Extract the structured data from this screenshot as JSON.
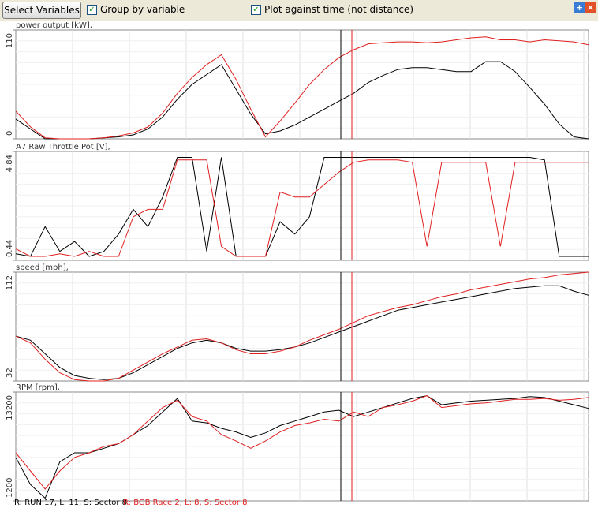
{
  "toolbar": {
    "button": "Select Variables",
    "checkbox_1": "Group by variable",
    "checkbox_2": "Plot against time (not distance)"
  },
  "footer": {
    "run_1": "R: RUN     17, L: 11, S: Sector 8",
    "run_2": "R: BGB Race 2, L: 8, S: Sector 8"
  },
  "chart_data": [
    {
      "type": "line",
      "title": "power output [kW],",
      "ylim": [
        0,
        110
      ],
      "yticks": [
        0,
        110
      ],
      "series": [
        {
          "color": "#000000",
          "values": [
            20,
            10,
            0,
            0,
            0,
            0,
            1,
            2,
            4,
            10,
            22,
            40,
            55,
            65,
            75,
            50,
            25,
            5,
            8,
            14,
            22,
            30,
            38,
            46,
            57,
            64,
            70,
            72,
            72,
            70,
            68,
            68,
            78,
            78,
            68,
            52,
            35,
            15,
            2,
            0
          ]
        },
        {
          "color": "#e02020",
          "values": [
            28,
            12,
            1,
            0,
            0,
            0,
            1,
            3,
            6,
            12,
            26,
            46,
            62,
            75,
            85,
            60,
            30,
            2,
            18,
            36,
            55,
            70,
            82,
            90,
            96,
            97,
            98,
            98,
            97,
            98,
            100,
            102,
            103,
            100,
            100,
            98,
            100,
            99,
            98,
            95
          ]
        }
      ]
    },
    {
      "type": "line",
      "title": "A7 Raw Throttle Pot [V],",
      "ylim": [
        0.44,
        4.84
      ],
      "yticks": [
        0.44,
        4.84
      ],
      "series": [
        {
          "color": "#000000",
          "values": [
            0.7,
            0.6,
            1.8,
            0.8,
            1.2,
            0.6,
            0.8,
            1.5,
            2.5,
            1.8,
            3.0,
            4.6,
            4.6,
            0.8,
            4.6,
            0.6,
            0.6,
            0.6,
            2.0,
            1.5,
            2.2,
            4.6,
            4.6,
            4.6,
            4.6,
            4.6,
            4.6,
            4.6,
            4.6,
            4.6,
            4.6,
            4.6,
            4.6,
            4.6,
            4.6,
            4.6,
            4.5,
            0.6,
            0.6,
            0.6
          ]
        },
        {
          "color": "#e02020",
          "values": [
            0.9,
            0.6,
            0.6,
            0.7,
            0.6,
            0.8,
            0.6,
            0.6,
            2.2,
            2.5,
            2.5,
            4.5,
            4.5,
            4.5,
            1.0,
            0.6,
            0.6,
            0.6,
            3.2,
            3.0,
            3.0,
            3.5,
            4.0,
            4.4,
            4.5,
            4.5,
            4.5,
            4.4,
            1.0,
            4.4,
            4.4,
            4.4,
            4.4,
            1.0,
            4.4,
            4.4,
            4.4,
            4.4,
            4.4,
            4.4
          ]
        }
      ]
    },
    {
      "type": "line",
      "title": "speed [mph],",
      "ylim": [
        32,
        112
      ],
      "yticks": [
        32,
        112
      ],
      "series": [
        {
          "color": "#000000",
          "values": [
            65,
            62,
            52,
            42,
            36,
            34,
            33,
            34,
            38,
            44,
            50,
            56,
            60,
            62,
            60,
            56,
            54,
            54,
            55,
            57,
            60,
            64,
            68,
            72,
            76,
            80,
            84,
            86,
            88,
            90,
            92,
            94,
            96,
            98,
            100,
            101,
            102,
            102,
            98,
            95
          ]
        },
        {
          "color": "#e02020",
          "values": [
            65,
            60,
            48,
            38,
            33,
            32,
            32,
            34,
            40,
            46,
            52,
            57,
            62,
            63,
            60,
            55,
            52,
            52,
            54,
            57,
            62,
            66,
            70,
            75,
            80,
            83,
            86,
            88,
            91,
            94,
            96,
            99,
            101,
            103,
            105,
            107,
            108,
            110,
            111,
            112
          ]
        }
      ]
    },
    {
      "type": "line",
      "title": "RPM [rpm],",
      "ylim": [
        1200,
        13200
      ],
      "yticks": [
        1200,
        13200
      ],
      "series": [
        {
          "color": "#000000",
          "values": [
            6000,
            3000,
            1500,
            5500,
            6500,
            6500,
            7000,
            7500,
            8500,
            9500,
            11000,
            12500,
            10000,
            9800,
            9200,
            8800,
            8200,
            8700,
            9500,
            10000,
            10500,
            11000,
            11200,
            10500,
            11000,
            11500,
            12000,
            12500,
            12800,
            11800,
            12000,
            12200,
            12300,
            12400,
            12500,
            12700,
            12600,
            12200,
            11800,
            11400
          ]
        },
        {
          "color": "#e02020",
          "values": [
            6500,
            4500,
            2500,
            4500,
            6000,
            6500,
            7200,
            7500,
            8500,
            10000,
            11500,
            12300,
            10500,
            10000,
            8500,
            7800,
            7000,
            7800,
            8800,
            9500,
            9800,
            10200,
            10000,
            11000,
            10500,
            11500,
            11800,
            12200,
            12800,
            11500,
            11700,
            11900,
            12000,
            12200,
            12400,
            12400,
            12500,
            12300,
            12400,
            12600
          ]
        }
      ]
    }
  ]
}
